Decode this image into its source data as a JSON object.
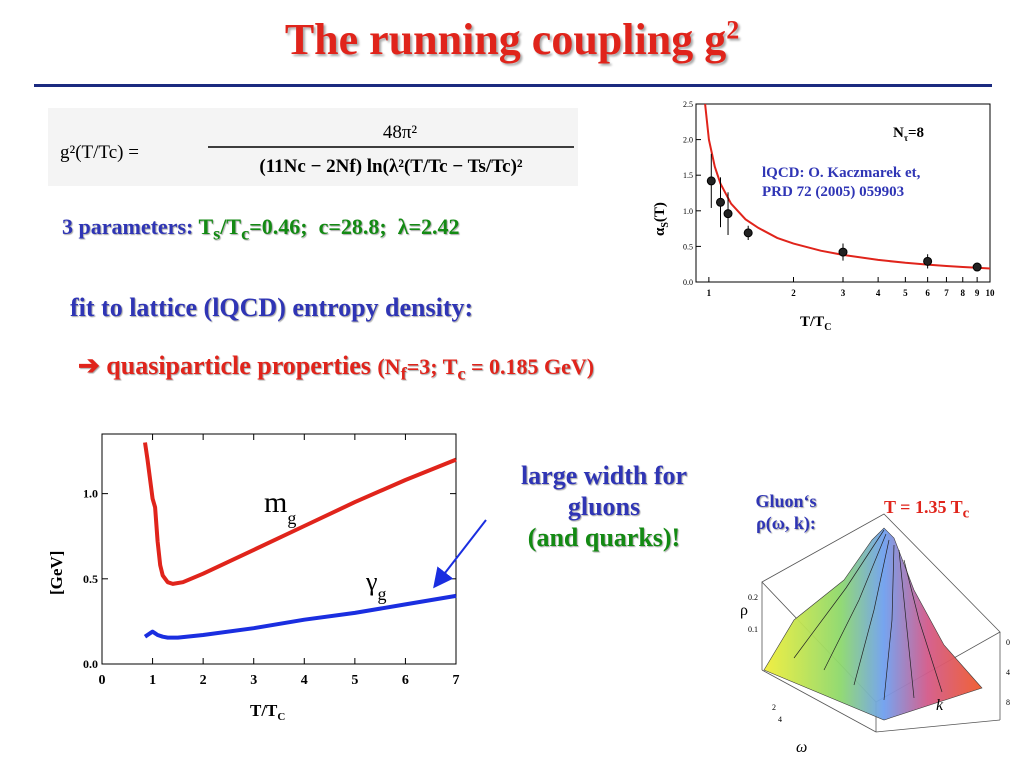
{
  "title": {
    "text": "The running coupling g",
    "sup": "2"
  },
  "formula": {
    "lhs": "g²(T/Tc) =",
    "numerator": "48π²",
    "denominator": "(11Nc − 2Nf) ln(λ²(T/Tc − Ts/Tc)²"
  },
  "params": {
    "prefix": "3 parameters: ",
    "ts_sym": "T",
    "ts_sub": "s",
    "slash": "/T",
    "tc_sub": "c",
    "ts_val": "=0.46;",
    "c": "c=28.8;",
    "lambda": "λ=2.42"
  },
  "fit_text": "fit to lattice (lQCD) entropy density:",
  "qp": {
    "arrow": "➔",
    "text": " quasiparticle properties ",
    "paren_open": "(N",
    "nf_sub": "f",
    "nf_val": "=3; T",
    "tc_sub": "c",
    "tc_val": " = 0.185 GeV)"
  },
  "width_note": {
    "line1": "large width for",
    "line2": "gluons",
    "line3": "(and quarks)!"
  },
  "gluon_label": {
    "line1": "Gluon‘s",
    "line2": "ρ(ω, k):"
  },
  "temp_label": {
    "text": "T = 1.35 T",
    "sub": "c"
  },
  "chart_data": [
    {
      "type": "scatter",
      "title": "",
      "xlabel_main": "T/T",
      "xlabel_sub": "C",
      "ylabel_main": "α",
      "ylabel_sub": "S",
      "ylabel_tail": "(T)",
      "xscale": "log",
      "xlim": [
        0.9,
        10
      ],
      "ylim": [
        0,
        2.5
      ],
      "xticks": [
        {
          "v": 1,
          "l": "1"
        },
        {
          "v": 2,
          "l": "2"
        },
        {
          "v": 3,
          "l": "3"
        },
        {
          "v": 4,
          "l": "4"
        },
        {
          "v": 5,
          "l": "5"
        },
        {
          "v": 6,
          "l": "6"
        },
        {
          "v": 7,
          "l": "7"
        },
        {
          "v": 8,
          "l": "8"
        },
        {
          "v": 9,
          "l": "9"
        },
        {
          "v": 10,
          "l": "10"
        }
      ],
      "yticks": [
        {
          "v": 0,
          "l": "0.0"
        },
        {
          "v": 0.5,
          "l": "0.5"
        },
        {
          "v": 1.0,
          "l": "1.0"
        },
        {
          "v": 1.5,
          "l": "1.5"
        },
        {
          "v": 2.0,
          "l": "2.0"
        },
        {
          "v": 2.5,
          "l": "2.5"
        }
      ],
      "points": [
        {
          "x": 1.02,
          "y": 1.42,
          "err": 0.38
        },
        {
          "x": 1.1,
          "y": 1.12,
          "err": 0.35
        },
        {
          "x": 1.17,
          "y": 0.96,
          "err": 0.3
        },
        {
          "x": 1.38,
          "y": 0.69,
          "err": 0.1
        },
        {
          "x": 3.0,
          "y": 0.42,
          "err": 0.12
        },
        {
          "x": 6.0,
          "y": 0.29,
          "err": 0.1
        },
        {
          "x": 9.0,
          "y": 0.21,
          "err": 0.04
        }
      ],
      "fit_curve": {
        "color": "#e0241b",
        "x": [
          0.97,
          1.0,
          1.05,
          1.1,
          1.2,
          1.35,
          1.5,
          1.75,
          2,
          2.5,
          3,
          4,
          5,
          6,
          7,
          8,
          9,
          10
        ],
        "y": [
          2.5,
          2.0,
          1.62,
          1.38,
          1.1,
          0.88,
          0.76,
          0.62,
          0.54,
          0.44,
          0.38,
          0.31,
          0.27,
          0.245,
          0.225,
          0.21,
          0.2,
          0.19
        ]
      },
      "annotation": {
        "nt_main": "N",
        "nt_sub": "τ",
        "nt_val": "=8",
        "ref1": "lQCD: O. Kaczmarek et,",
        "ref2": "PRD 72 (2005) 059903",
        "ref_color": "#2f35b5"
      }
    },
    {
      "type": "line",
      "title": "",
      "xlabel_main": "T/T",
      "xlabel_sub": "C",
      "ylabel": "[GeV]",
      "xlim": [
        0,
        7
      ],
      "ylim": [
        0,
        1.35
      ],
      "xticks": [
        {
          "v": 0,
          "l": "0"
        },
        {
          "v": 1,
          "l": "1"
        },
        {
          "v": 2,
          "l": "2"
        },
        {
          "v": 3,
          "l": "3"
        },
        {
          "v": 4,
          "l": "4"
        },
        {
          "v": 5,
          "l": "5"
        },
        {
          "v": 6,
          "l": "6"
        },
        {
          "v": 7,
          "l": "7"
        }
      ],
      "yticks": [
        {
          "v": 0,
          "l": "0.0"
        },
        {
          "v": 0.5,
          "l": "0.5"
        },
        {
          "v": 1.0,
          "l": "1.0"
        }
      ],
      "series": [
        {
          "label_main": "m",
          "label_sub": "g",
          "color": "#e0241b",
          "x": [
            0.85,
            0.9,
            1.0,
            1.05,
            1.1,
            1.15,
            1.2,
            1.3,
            1.4,
            1.6,
            2,
            3,
            4,
            5,
            6,
            7
          ],
          "y": [
            1.3,
            1.2,
            0.97,
            0.92,
            0.72,
            0.58,
            0.52,
            0.48,
            0.47,
            0.48,
            0.53,
            0.67,
            0.81,
            0.95,
            1.08,
            1.2
          ]
        },
        {
          "label_main": "γ",
          "label_sub": "g",
          "color": "#1a2ee0",
          "x": [
            0.85,
            0.95,
            1.0,
            1.05,
            1.1,
            1.2,
            1.3,
            1.5,
            2,
            3,
            4,
            5,
            6,
            7
          ],
          "y": [
            0.16,
            0.18,
            0.19,
            0.18,
            0.17,
            0.16,
            0.155,
            0.155,
            0.17,
            0.21,
            0.26,
            0.3,
            0.35,
            0.4
          ]
        }
      ]
    }
  ]
}
